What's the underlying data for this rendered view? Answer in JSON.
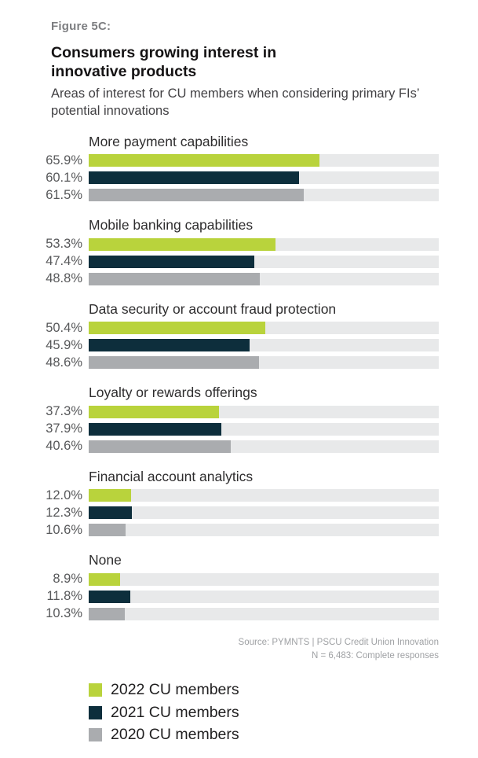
{
  "header": {
    "figure_label": "Figure 5C:",
    "title": "Consumers growing interest in innovative products",
    "subtitle": "Areas of interest for CU members when considering primary FIs’ potential innovations"
  },
  "source": {
    "line1": "Source: PYMNTS | PSCU Credit Union Innovation",
    "line2": "N = 6,483: Complete responses"
  },
  "colors": {
    "green_2022": "#b9d33c",
    "navy_2021": "#0d2e3c",
    "gray_2020": "#aaacaf",
    "track": "#e8e9ea"
  },
  "chart_data": {
    "type": "bar",
    "orientation": "horizontal",
    "xlim": [
      0,
      100
    ],
    "grid": false,
    "legend_position": "bottom-left",
    "categories": [
      "More payment capabilities",
      "Mobile banking capabilities",
      "Data security or account fraud protection",
      "Loyalty or rewards offerings",
      "Financial account analytics",
      "None"
    ],
    "series": [
      {
        "name": "2022 CU members",
        "color": "#b9d33c",
        "values": [
          65.9,
          53.3,
          50.4,
          37.3,
          12.0,
          8.9
        ]
      },
      {
        "name": "2021 CU members",
        "color": "#0d2e3c",
        "values": [
          60.1,
          47.4,
          45.9,
          37.9,
          12.3,
          11.8
        ]
      },
      {
        "name": "2020 CU members",
        "color": "#aaacaf",
        "values": [
          61.5,
          48.8,
          48.6,
          40.6,
          10.6,
          10.3
        ]
      }
    ],
    "value_label_format": "{value}%"
  },
  "legend": {
    "items": [
      {
        "label": "2022 CU members",
        "color": "#b9d33c"
      },
      {
        "label": "2021 CU members",
        "color": "#0d2e3c"
      },
      {
        "label": "2020 CU members",
        "color": "#aaacaf"
      }
    ]
  }
}
